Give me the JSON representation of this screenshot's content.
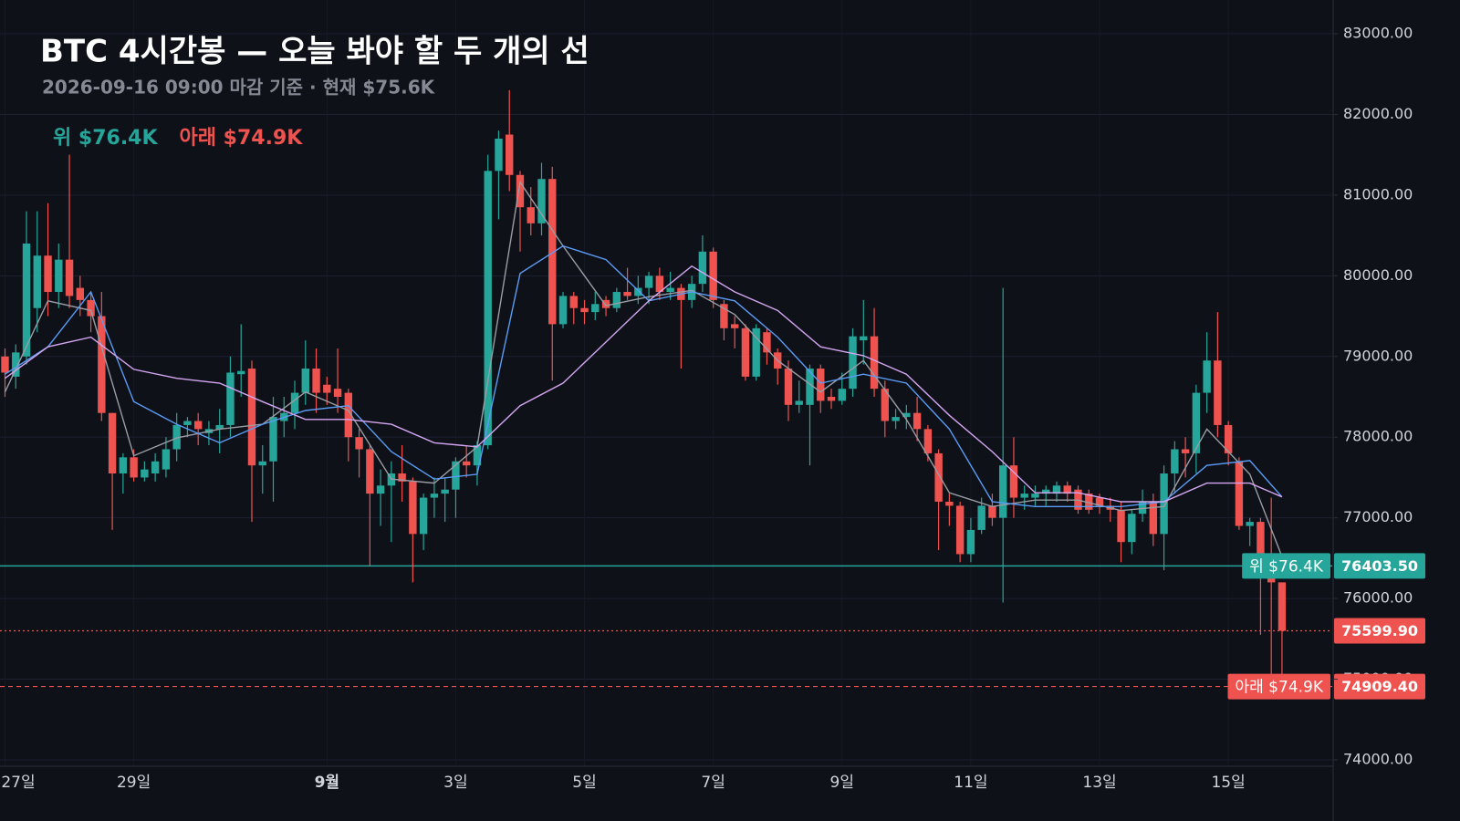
{
  "chart_data": {
    "type": "candlestick",
    "title": "BTC 4시간봉 — 오늘 봐야 할 두 개의 선",
    "subtitle": "2026-09-16 09:00 마감 기준 · 현재 $75.6K",
    "up_color": "#26a69a",
    "down_color": "#ef5350",
    "categories": [
      "27일",
      null,
      null,
      null,
      null,
      null,
      null,
      null,
      null,
      null,
      null,
      null,
      "29일",
      null,
      null,
      null,
      null,
      null,
      null,
      null,
      null,
      null,
      null,
      null,
      null,
      null,
      null,
      null,
      null,
      null,
      "9월",
      null,
      null,
      null,
      null,
      null,
      null,
      null,
      null,
      null,
      null,
      null,
      "3일",
      null,
      null,
      null,
      null,
      null,
      null,
      null,
      null,
      null,
      null,
      null,
      "5일",
      null,
      null,
      null,
      null,
      null,
      null,
      null,
      null,
      null,
      null,
      null,
      "7일",
      null,
      null,
      null,
      null,
      null,
      null,
      null,
      null,
      null,
      null,
      null,
      "9일",
      null,
      null,
      null,
      null,
      null,
      null,
      null,
      null,
      null,
      null,
      null,
      "11일",
      null,
      null,
      null,
      null,
      null,
      null,
      null,
      null,
      null,
      null,
      null,
      "13일",
      null,
      null,
      null,
      null,
      null,
      null,
      null,
      null,
      null,
      null,
      null,
      "15일",
      null,
      null,
      null,
      null,
      null
    ],
    "open": [
      79000,
      78750,
      79000,
      79600,
      80250,
      79800,
      80200,
      79850,
      79700,
      79500,
      78300,
      77550,
      77750,
      77500,
      77550,
      77600,
      77850,
      78150,
      78200,
      78050,
      78100,
      78150,
      78780,
      78850,
      77650,
      77700,
      78200,
      78300,
      78550,
      78850,
      78650,
      78600,
      78550,
      78000,
      77850,
      77300,
      77400,
      77550,
      77450,
      76800,
      77250,
      77300,
      77350,
      77700,
      77650,
      77900,
      81300,
      81750,
      81250,
      80850,
      80650,
      81200,
      79400,
      79750,
      79600,
      79550,
      79700,
      79600,
      79800,
      79750,
      79850,
      80000,
      79800,
      79850,
      79700,
      79900,
      80300,
      79650,
      79400,
      79350,
      78750,
      79300,
      79050,
      78850,
      78400,
      78400,
      78850,
      78500,
      78450,
      78600,
      79200,
      79250,
      78600,
      78200,
      78250,
      78300,
      78100,
      77800,
      77200,
      77150,
      76550,
      76850,
      77150,
      77000,
      77650,
      77250,
      77250,
      77300,
      77300,
      77400,
      77350,
      77300,
      77250,
      77150,
      77100,
      76700,
      77050,
      77200,
      76800,
      77550,
      77850,
      77800,
      78550,
      78950,
      78150,
      77700,
      76900,
      76950,
      76550,
      76200
    ],
    "high": [
      79100,
      79150,
      80800,
      80800,
      80900,
      80400,
      81500,
      80000,
      79800,
      79800,
      78300,
      77800,
      77850,
      77700,
      77800,
      78000,
      78300,
      78250,
      78300,
      78200,
      78350,
      79000,
      79400,
      78950,
      77900,
      78500,
      78500,
      78700,
      79200,
      79100,
      78750,
      79100,
      78600,
      78100,
      77900,
      77600,
      77700,
      77900,
      77500,
      77300,
      77500,
      77500,
      77750,
      77900,
      77950,
      81500,
      81800,
      82300,
      81300,
      81100,
      81400,
      81350,
      79800,
      79800,
      79700,
      79800,
      79750,
      79850,
      80100,
      80000,
      80050,
      80100,
      80050,
      79900,
      80000,
      80500,
      80350,
      79700,
      79500,
      79400,
      79400,
      79350,
      79100,
      78950,
      78700,
      78900,
      78900,
      78600,
      78800,
      79350,
      79700,
      79600,
      78700,
      78350,
      78400,
      78500,
      78150,
      77850,
      77300,
      77200,
      77000,
      77250,
      77300,
      79850,
      78000,
      77400,
      77400,
      77400,
      77450,
      77450,
      77400,
      77350,
      77300,
      77250,
      77200,
      77100,
      77350,
      77300,
      77650,
      77950,
      78000,
      78650,
      79300,
      79550,
      78200,
      77750,
      77000,
      77000,
      77250,
      76200
    ],
    "low": [
      78500,
      78600,
      78900,
      79300,
      79500,
      79600,
      79600,
      79500,
      79300,
      78200,
      76850,
      77300,
      77450,
      77450,
      77450,
      77500,
      77700,
      78000,
      77900,
      77900,
      77800,
      78000,
      78500,
      76950,
      77300,
      77200,
      78000,
      78100,
      78400,
      78300,
      78400,
      78300,
      77700,
      77500,
      76400,
      76900,
      76700,
      77200,
      76200,
      76600,
      77000,
      76950,
      77000,
      77500,
      77400,
      77850,
      80700,
      81050,
      80300,
      80500,
      80500,
      78700,
      79350,
      79400,
      79400,
      79450,
      79500,
      79550,
      79700,
      79650,
      79650,
      79700,
      79700,
      78850,
      79600,
      79800,
      79600,
      79200,
      79100,
      78700,
      78700,
      78900,
      78650,
      78200,
      78300,
      77650,
      78300,
      78350,
      78400,
      78500,
      78900,
      78500,
      78000,
      78100,
      78100,
      77950,
      77700,
      76600,
      76900,
      76450,
      76450,
      76800,
      76900,
      75950,
      77000,
      77100,
      77150,
      77150,
      77200,
      77200,
      77050,
      77050,
      77050,
      76950,
      76450,
      76550,
      76950,
      76650,
      76350,
      77300,
      77500,
      77550,
      78300,
      78000,
      77650,
      76850,
      76650,
      75550,
      74900,
      75050
    ],
    "close": [
      78800,
      79050,
      80400,
      80250,
      79800,
      80200,
      79750,
      79700,
      79500,
      78300,
      77550,
      77750,
      77500,
      77600,
      77700,
      77850,
      78150,
      78200,
      78100,
      78100,
      78150,
      78800,
      78820,
      77650,
      77700,
      78250,
      78300,
      78550,
      78850,
      78550,
      78550,
      78500,
      78000,
      77850,
      77300,
      77400,
      77550,
      77450,
      76800,
      77250,
      77300,
      77350,
      77700,
      77650,
      77900,
      81300,
      81700,
      81250,
      80850,
      80650,
      81200,
      79400,
      79750,
      79600,
      79550,
      79650,
      79600,
      79800,
      79750,
      79850,
      80000,
      79800,
      79850,
      79700,
      79900,
      80300,
      79700,
      79350,
      79350,
      78750,
      79350,
      79050,
      78850,
      78400,
      78450,
      78850,
      78450,
      78450,
      78600,
      79250,
      79250,
      78600,
      78200,
      78250,
      78300,
      78100,
      77800,
      77200,
      77150,
      76550,
      76850,
      77150,
      77000,
      77650,
      77250,
      77300,
      77300,
      77350,
      77400,
      77300,
      77100,
      77100,
      77150,
      77100,
      76700,
      77050,
      77200,
      76800,
      77550,
      77850,
      77800,
      78550,
      78950,
      78150,
      77800,
      76900,
      76950,
      76550,
      76200,
      75599.9
    ],
    "lines": [
      {
        "color": "#9a9da5",
        "x": [
          0,
          4,
          8,
          12,
          16,
          20,
          24,
          28,
          32,
          36,
          40,
          44,
          48,
          52,
          56,
          60,
          64,
          68,
          72,
          76,
          80,
          84,
          88,
          92,
          96,
          100,
          104,
          108,
          112,
          116,
          119
        ],
        "values": [
          78560,
          79690,
          79570,
          77770,
          77990,
          78100,
          78160,
          78560,
          78330,
          77480,
          77430,
          77880,
          81160,
          80370,
          79630,
          79740,
          79820,
          79520,
          78950,
          78560,
          78950,
          78220,
          77310,
          77140,
          77220,
          77220,
          77090,
          77140,
          78100,
          77540,
          76520
        ]
      },
      {
        "color": "#5b9cf6",
        "x": [
          0,
          4,
          8,
          12,
          16,
          20,
          24,
          28,
          32,
          36,
          40,
          44,
          48,
          52,
          56,
          60,
          64,
          68,
          72,
          76,
          80,
          84,
          88,
          92,
          96,
          100,
          104,
          108,
          112,
          116,
          119
        ],
        "values": [
          78780,
          79120,
          79800,
          78440,
          78160,
          77930,
          78160,
          78330,
          78390,
          77820,
          77480,
          77540,
          80030,
          80370,
          80200,
          79690,
          79800,
          79690,
          79240,
          78670,
          78780,
          78670,
          78100,
          77200,
          77140,
          77140,
          77140,
          77200,
          77650,
          77710,
          77260
        ]
      },
      {
        "color": "#d4a6f2",
        "x": [
          0,
          4,
          8,
          12,
          16,
          20,
          24,
          28,
          32,
          36,
          40,
          44,
          48,
          52,
          56,
          60,
          64,
          68,
          72,
          76,
          80,
          84,
          88,
          92,
          96,
          100,
          104,
          108,
          112,
          116,
          119
        ],
        "values": [
          78730,
          79120,
          79240,
          78840,
          78730,
          78670,
          78440,
          78220,
          78220,
          78160,
          77930,
          77880,
          78390,
          78670,
          79180,
          79690,
          80120,
          79800,
          79570,
          79120,
          79010,
          78780,
          78270,
          77820,
          77310,
          77310,
          77200,
          77200,
          77430,
          77430,
          77260
        ]
      }
    ],
    "levels": [
      {
        "name": "위 $76.4K",
        "value": 76403.5,
        "label": "76403.50",
        "color": "#26a69a",
        "style": "solid"
      },
      {
        "value": 75599.9,
        "label": "75599.90",
        "color": "#ef5350",
        "style": "dotted"
      },
      {
        "name": "아래 $74.9K",
        "value": 74909.4,
        "label": "74909.40",
        "color": "#ef5350",
        "style": "dashed"
      }
    ],
    "ylim": [
      74000,
      83000
    ],
    "yticks": [
      {
        "value": 74000,
        "label": "74000.00"
      },
      {
        "value": 75000,
        "label": "75000.00"
      },
      {
        "value": 76000,
        "label": "76000.00"
      },
      {
        "value": 77000,
        "label": "77000.00"
      },
      {
        "value": 78000,
        "label": "78000.00"
      },
      {
        "value": 79000,
        "label": "79000.00"
      },
      {
        "value": 80000,
        "label": "80000.00"
      },
      {
        "value": 81000,
        "label": "81000.00"
      },
      {
        "value": 82000,
        "label": "82000.00"
      },
      {
        "value": 83000,
        "label": "83000.00"
      }
    ],
    "grid": true
  }
}
